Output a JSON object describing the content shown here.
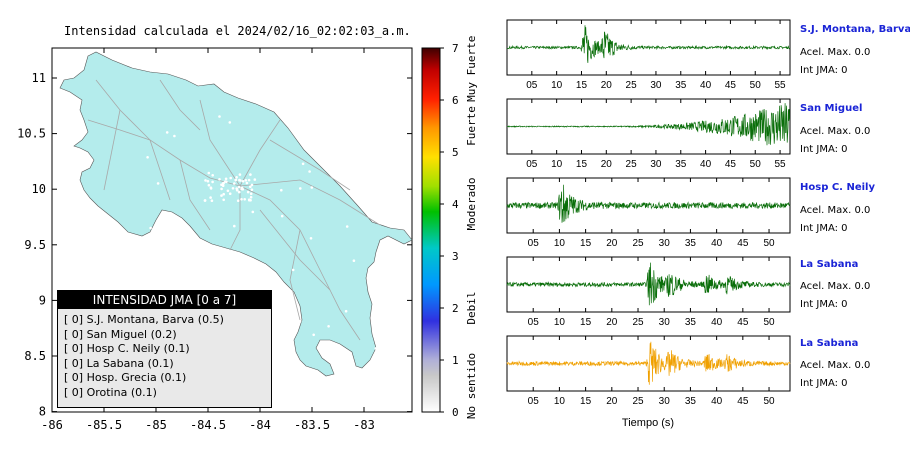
{
  "map": {
    "title": "Intensidad calculada el 2024/02/16_02:02:03_a.m.",
    "x_ticks": [
      "-86",
      "-85.5",
      "-85",
      "-84.5",
      "-84",
      "-83.5",
      "-83"
    ],
    "y_ticks": [
      "11",
      "10.5",
      "10",
      "9.5",
      "9",
      "8.5",
      "8"
    ],
    "land_color": "#b4ecec",
    "road_color": "#a8a8a8"
  },
  "colorbar": {
    "ticks": [
      "0",
      "1",
      "2",
      "3",
      "4",
      "5",
      "6",
      "7"
    ],
    "labels": [
      "No sentido",
      "Debil",
      "Moderado",
      "Fuerte",
      "Muy Fuerte"
    ]
  },
  "legend": {
    "header": "INTENSIDAD JMA [0 a 7]",
    "rows": [
      "[ 0]  S.J. Montana, Barva (0.5)",
      "[ 0]  San Miguel (0.2)",
      "[ 0]  Hosp C. Neily (0.1)",
      "[ 0]  La Sabana (0.1)",
      "[ 0]  Hosp. Grecia (0.1)",
      "[ 0]  Orotina (0.1)"
    ]
  },
  "chart_data": {
    "type": "line",
    "xlabel": "Tiempo (s)",
    "panels": [
      {
        "station": "S.J. Montana, Barva",
        "acel": "Acel. Max. 0.0",
        "int": "Int JMA: 0",
        "color": "#0a6e0a",
        "x_ticks": [
          "05",
          "10",
          "15",
          "20",
          "25",
          "30",
          "35",
          "40",
          "45",
          "50",
          "55"
        ],
        "xlim": [
          0,
          57
        ],
        "bursts": [
          [
            15.5,
            1.0
          ],
          [
            19.5,
            0.7
          ]
        ],
        "noise": 0.05,
        "growth": 0
      },
      {
        "station": "San Miguel",
        "acel": "Acel. Max. 0.0",
        "int": "Int JMA: 0",
        "color": "#0a6e0a",
        "x_ticks": [
          "05",
          "10",
          "15",
          "20",
          "25",
          "30",
          "35",
          "40",
          "45",
          "50",
          "55"
        ],
        "xlim": [
          0,
          57
        ],
        "bursts": [],
        "noise": 0.02,
        "growth": 1
      },
      {
        "station": "Hosp C. Neily",
        "acel": "Acel. Max. 0.0",
        "int": "Int JMA: 0",
        "color": "#0a6e0a",
        "x_ticks": [
          "05",
          "10",
          "15",
          "20",
          "25",
          "30",
          "35",
          "40",
          "45",
          "50"
        ],
        "xlim": [
          0,
          54
        ],
        "bursts": [
          [
            10.3,
            1.0
          ]
        ],
        "noise": 0.12,
        "growth": 0
      },
      {
        "station": "La Sabana",
        "acel": "Acel. Max. 0.0",
        "int": "Int JMA: 0",
        "color": "#0a6e0a",
        "x_ticks": [
          "05",
          "10",
          "15",
          "20",
          "25",
          "30",
          "35",
          "40",
          "45",
          "50"
        ],
        "xlim": [
          0,
          54
        ],
        "bursts": [
          [
            27.2,
            1.0
          ],
          [
            31,
            0.45
          ],
          [
            38,
            0.4
          ],
          [
            42,
            0.3
          ]
        ],
        "noise": 0.08,
        "growth": 0
      },
      {
        "station": "La Sabana",
        "acel": "Acel. Max. 0.0",
        "int": "Int JMA: 0",
        "color": "#f0a000",
        "x_ticks": [
          "05",
          "10",
          "15",
          "20",
          "25",
          "30",
          "35",
          "40",
          "45",
          "50"
        ],
        "xlim": [
          0,
          54
        ],
        "bursts": [
          [
            27.2,
            1.0
          ],
          [
            31,
            0.45
          ],
          [
            38,
            0.4
          ],
          [
            42,
            0.3
          ]
        ],
        "noise": 0.08,
        "growth": 0
      }
    ]
  }
}
